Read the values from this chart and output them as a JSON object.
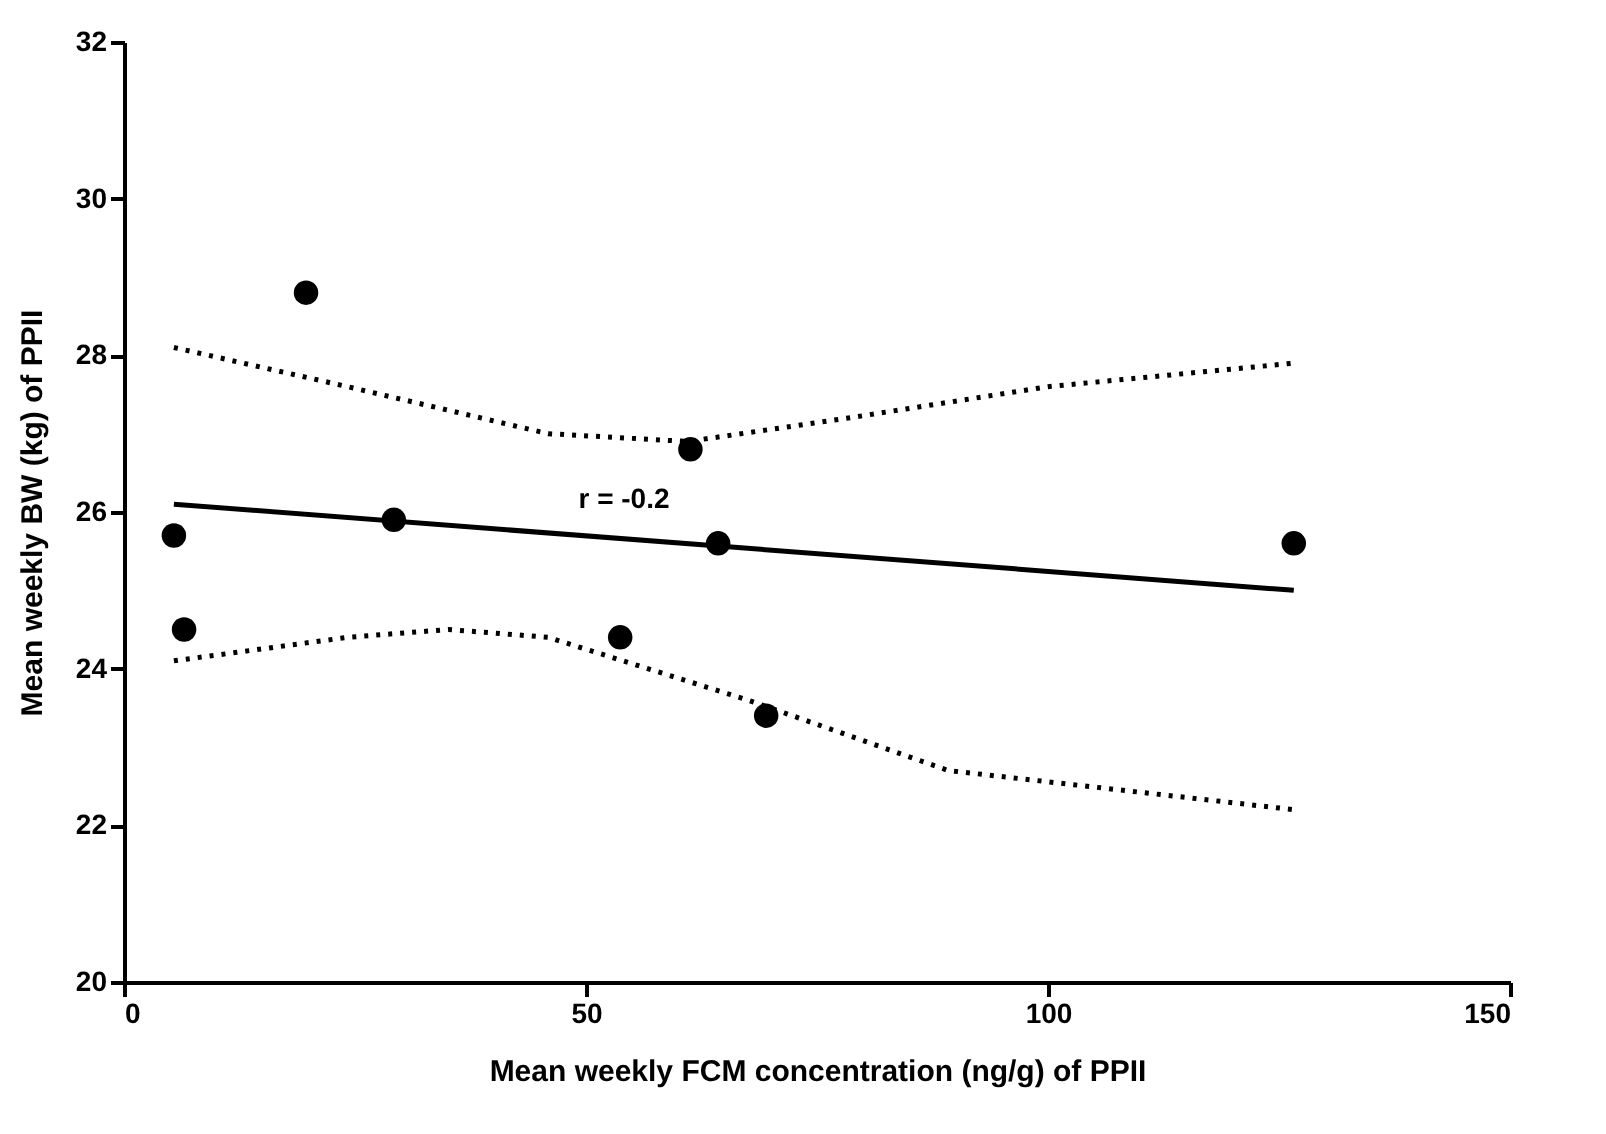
{
  "chart_data": {
    "type": "scatter",
    "xlabel": "Mean weekly FCM concentration (ng/g) of PPII",
    "ylabel": "Mean weekly BW (kg) of PPII",
    "xlim": [
      0,
      150
    ],
    "xticks": [
      0,
      50,
      100,
      150
    ],
    "ylim": [
      20,
      32
    ],
    "yticks": [
      20,
      22,
      24,
      26,
      28,
      30,
      32
    ],
    "grid": false,
    "series": [
      {
        "marker": "circle",
        "color": "#000000",
        "x": [
          5.4,
          6.5,
          19.7,
          29.2,
          53.7,
          61.3,
          64.3,
          69.5,
          126.6
        ],
        "values": [
          25.7,
          24.5,
          28.8,
          25.9,
          24.4,
          26.8,
          25.6,
          23.4,
          25.6
        ]
      },
      {
        "type": "line",
        "color": "#000000",
        "line_style": "solid",
        "x": [
          5.4,
          126.6
        ],
        "values": [
          26.1,
          25.0
        ]
      },
      {
        "type": "line",
        "color": "#000000",
        "line_style": "dotted",
        "x": [
          5.4,
          24.2,
          45.9,
          61.0,
          78.4,
          100.0,
          126.6
        ],
        "values": [
          28.1,
          27.6,
          27.0,
          26.9,
          27.2,
          27.6,
          27.9
        ]
      },
      {
        "type": "line",
        "color": "#000000",
        "line_style": "dotted",
        "x": [
          5.4,
          24.2,
          35.1,
          45.9,
          67.5,
          89.2,
          126.6
        ],
        "values": [
          24.1,
          24.4,
          24.5,
          24.4,
          23.6,
          22.7,
          22.2
        ]
      }
    ],
    "annotations": [
      "r = -0.2"
    ]
  }
}
